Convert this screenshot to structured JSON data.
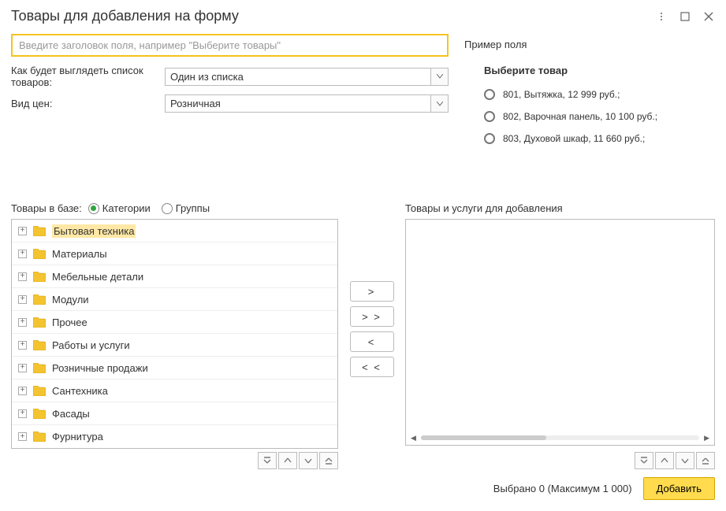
{
  "title": "Товары для добавления на форму",
  "header_placeholder": "Введите заголовок поля, например \"Выберите товары\"",
  "list_view_label": "Как будет выглядеть список товаров:",
  "list_view_value": "Один из списка",
  "price_type_label": "Вид цен:",
  "price_type_value": "Розничная",
  "sample": {
    "title": "Пример поля",
    "subtitle": "Выберите товар",
    "items": [
      "801, Вытяжка, 12 999 руб.;",
      "802, Варочная панель, 10 100 руб.;",
      "803, Духовой шкаф, 11 660 руб.;"
    ]
  },
  "db_panel": {
    "title": "Товары в базе:",
    "radio_categories": "Категории",
    "radio_groups": "Группы",
    "items": [
      "Бытовая техника",
      "Материалы",
      "Мебельные детали",
      "Модули",
      "Прочее",
      "Работы и услуги",
      "Розничные продажи",
      "Сантехника",
      "Фасады",
      "Фурнитура"
    ]
  },
  "add_panel_title": "Товары и услуги для добавления",
  "transfer": {
    "right": ">",
    "all_right": "> >",
    "left": "<",
    "all_left": "< <"
  },
  "footer": {
    "count": "Выбрано 0 (Максимум 1 000)",
    "add_button": "Добавить"
  }
}
